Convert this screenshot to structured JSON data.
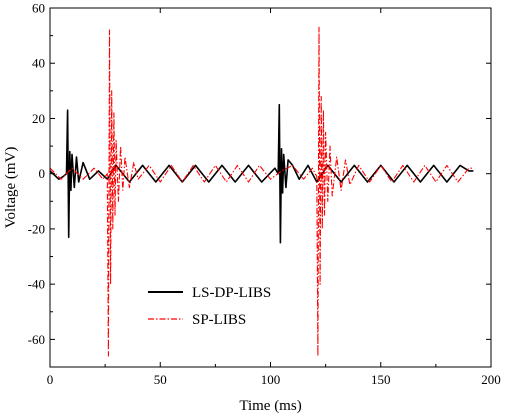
{
  "chart_data": {
    "type": "line",
    "xlabel": "Time (ms)",
    "ylabel": "Voltage (mV)",
    "xlim": [
      0,
      200
    ],
    "ylim": [
      -70,
      60
    ],
    "xticks": [
      0,
      50,
      100,
      150,
      200
    ],
    "yticks": [
      -60,
      -40,
      -20,
      0,
      20,
      40,
      60
    ],
    "xtick_labels": [
      "0",
      "50",
      "100",
      "150",
      "200"
    ],
    "ytick_labels": [
      "-60",
      "-40",
      "-20",
      "0",
      "20",
      "40",
      "60"
    ],
    "grid": false,
    "legend_position": "lower-left",
    "series": [
      {
        "name": "LS-DP-LIBS",
        "color": "#000000",
        "style": "solid",
        "x": [
          0,
          4,
          6,
          7.5,
          8,
          8.5,
          9,
          9.5,
          10,
          11,
          12,
          13,
          15,
          18,
          22,
          26,
          30,
          36,
          42,
          48,
          54,
          60,
          66,
          72,
          78,
          84,
          90,
          96,
          102,
          103.5,
          104,
          104.5,
          105,
          105.5,
          106,
          107,
          108,
          110,
          113,
          117,
          121,
          126,
          132,
          138,
          144,
          150,
          156,
          162,
          168,
          174,
          180,
          186,
          190,
          192
        ],
        "y": [
          1,
          -2,
          -1,
          0,
          23,
          -23,
          8,
          -6,
          7,
          -5,
          6,
          -3,
          4,
          -2,
          1,
          -2,
          3,
          -3,
          3,
          -3,
          3,
          -3,
          3,
          -3,
          3,
          -3,
          3,
          -3,
          2,
          0,
          25,
          -25,
          9,
          -7,
          7,
          -5,
          5,
          3,
          -2,
          3,
          -3,
          3,
          -3,
          3,
          -3,
          3,
          -3,
          3,
          -3,
          3,
          -3,
          3,
          1,
          1
        ]
      },
      {
        "name": "SP-LIBS",
        "color": "#ff0000",
        "style": "dash-dot",
        "x": [
          0,
          5,
          10,
          15,
          20,
          24,
          26,
          26.5,
          27,
          27.5,
          28,
          28.5,
          29,
          29.5,
          30,
          31,
          32,
          33,
          34,
          36,
          38,
          40,
          45,
          50,
          55,
          60,
          65,
          70,
          75,
          80,
          85,
          90,
          95,
          100,
          105,
          110,
          115,
          119,
          121,
          121.5,
          122,
          122.5,
          123,
          123.5,
          124,
          124.5,
          125,
          126,
          127,
          128,
          130,
          132,
          134,
          136,
          140,
          145,
          150,
          155,
          160,
          165,
          170,
          175,
          180,
          185,
          190,
          192
        ],
        "y": [
          2,
          -2,
          2,
          -2,
          2,
          -2,
          0,
          -66,
          52,
          -40,
          30,
          -20,
          22,
          -15,
          12,
          -10,
          10,
          -6,
          6,
          -5,
          4,
          -2,
          3,
          -3,
          3,
          -3,
          3,
          -3,
          3,
          -3,
          3,
          -3,
          3,
          -2,
          1,
          3,
          -2,
          2,
          -1,
          -66,
          53,
          -40,
          28,
          -20,
          23,
          -15,
          15,
          -10,
          10,
          -8,
          6,
          -6,
          5,
          -4,
          3,
          -3,
          3,
          -3,
          3,
          -3,
          3,
          -3,
          3,
          -3,
          2,
          2
        ]
      }
    ]
  }
}
